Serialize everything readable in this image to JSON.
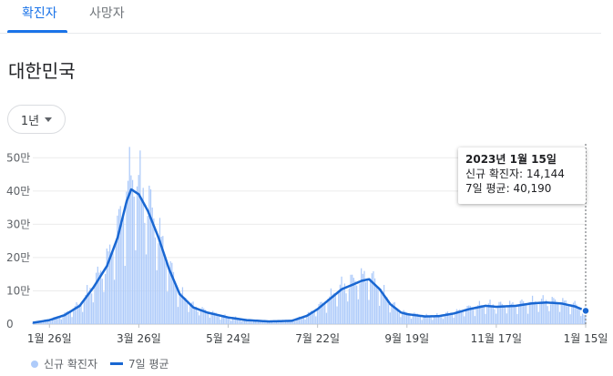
{
  "tabs": [
    {
      "label": "확진자",
      "active": true
    },
    {
      "label": "사망자",
      "active": false
    }
  ],
  "region": "대한민국",
  "range_selector": {
    "selected": "1년"
  },
  "tooltip": {
    "date": "2023년 1월 15일",
    "new_cases_label": "신규 확진자:",
    "new_cases_value": "14,144",
    "avg_label": "7일 평균:",
    "avg_value": "40,190"
  },
  "legend": {
    "bars": "신규 확진자",
    "line": "7일 평균"
  },
  "colors": {
    "bars": "#aecbfa",
    "line": "#1967d2",
    "accent": "#1a73e8"
  },
  "chart_data": {
    "type": "bar",
    "title": "",
    "xlabel": "",
    "ylabel": "",
    "ylim": [
      0,
      55
    ],
    "y_unit": "만",
    "yticks": [
      {
        "value": 0,
        "label": "0"
      },
      {
        "value": 10,
        "label": "10만"
      },
      {
        "value": 20,
        "label": "20만"
      },
      {
        "value": 30,
        "label": "30만"
      },
      {
        "value": 40,
        "label": "40만"
      },
      {
        "value": 50,
        "label": "50만"
      }
    ],
    "x_range": [
      "2022-01-15",
      "2023-01-15"
    ],
    "xticks": [
      {
        "date": "2022-01-26",
        "label": "1월 26일"
      },
      {
        "date": "2022-03-26",
        "label": "3월 26일"
      },
      {
        "date": "2022-05-24",
        "label": "5월 24일"
      },
      {
        "date": "2022-07-22",
        "label": "7월 22일"
      },
      {
        "date": "2022-09-19",
        "label": "9월 19일"
      },
      {
        "date": "2022-11-17",
        "label": "11월 17일"
      },
      {
        "date": "2023-01-15",
        "label": "1월 15일"
      }
    ],
    "grid": true,
    "legend_position": "bottom-left",
    "series": [
      {
        "name": "신규 확진자",
        "type": "bar"
      },
      {
        "name": "7일 평균",
        "type": "line",
        "points": [
          [
            "2022-01-15",
            0.4
          ],
          [
            "2022-01-26",
            1.2
          ],
          [
            "2022-02-05",
            2.7
          ],
          [
            "2022-02-15",
            5.5
          ],
          [
            "2022-02-24",
            11.0
          ],
          [
            "2022-03-05",
            17.5
          ],
          [
            "2022-03-12",
            26.0
          ],
          [
            "2022-03-18",
            37.0
          ],
          [
            "2022-03-21",
            40.5
          ],
          [
            "2022-03-26",
            39.0
          ],
          [
            "2022-04-01",
            34.0
          ],
          [
            "2022-04-08",
            26.0
          ],
          [
            "2022-04-15",
            16.5
          ],
          [
            "2022-04-22",
            9.0
          ],
          [
            "2022-05-01",
            5.0
          ],
          [
            "2022-05-10",
            3.5
          ],
          [
            "2022-05-24",
            2.0
          ],
          [
            "2022-06-05",
            1.2
          ],
          [
            "2022-06-20",
            0.8
          ],
          [
            "2022-07-05",
            1.0
          ],
          [
            "2022-07-15",
            2.5
          ],
          [
            "2022-07-22",
            4.5
          ],
          [
            "2022-07-30",
            7.5
          ],
          [
            "2022-08-07",
            10.5
          ],
          [
            "2022-08-15",
            12.0
          ],
          [
            "2022-08-20",
            13.0
          ],
          [
            "2022-08-25",
            13.5
          ],
          [
            "2022-09-01",
            10.5
          ],
          [
            "2022-09-08",
            6.0
          ],
          [
            "2022-09-15",
            3.5
          ],
          [
            "2022-09-19",
            3.0
          ],
          [
            "2022-10-01",
            2.3
          ],
          [
            "2022-10-10",
            2.4
          ],
          [
            "2022-10-20",
            3.2
          ],
          [
            "2022-10-30",
            4.5
          ],
          [
            "2022-11-10",
            5.5
          ],
          [
            "2022-11-17",
            5.2
          ],
          [
            "2022-11-30",
            5.5
          ],
          [
            "2022-12-10",
            6.2
          ],
          [
            "2022-12-20",
            6.5
          ],
          [
            "2022-12-30",
            6.2
          ],
          [
            "2023-01-08",
            5.3
          ],
          [
            "2023-01-15",
            4.0
          ]
        ]
      }
    ],
    "highlight": {
      "date": "2023-01-15",
      "new_cases": 14144,
      "avg": 40190
    }
  }
}
